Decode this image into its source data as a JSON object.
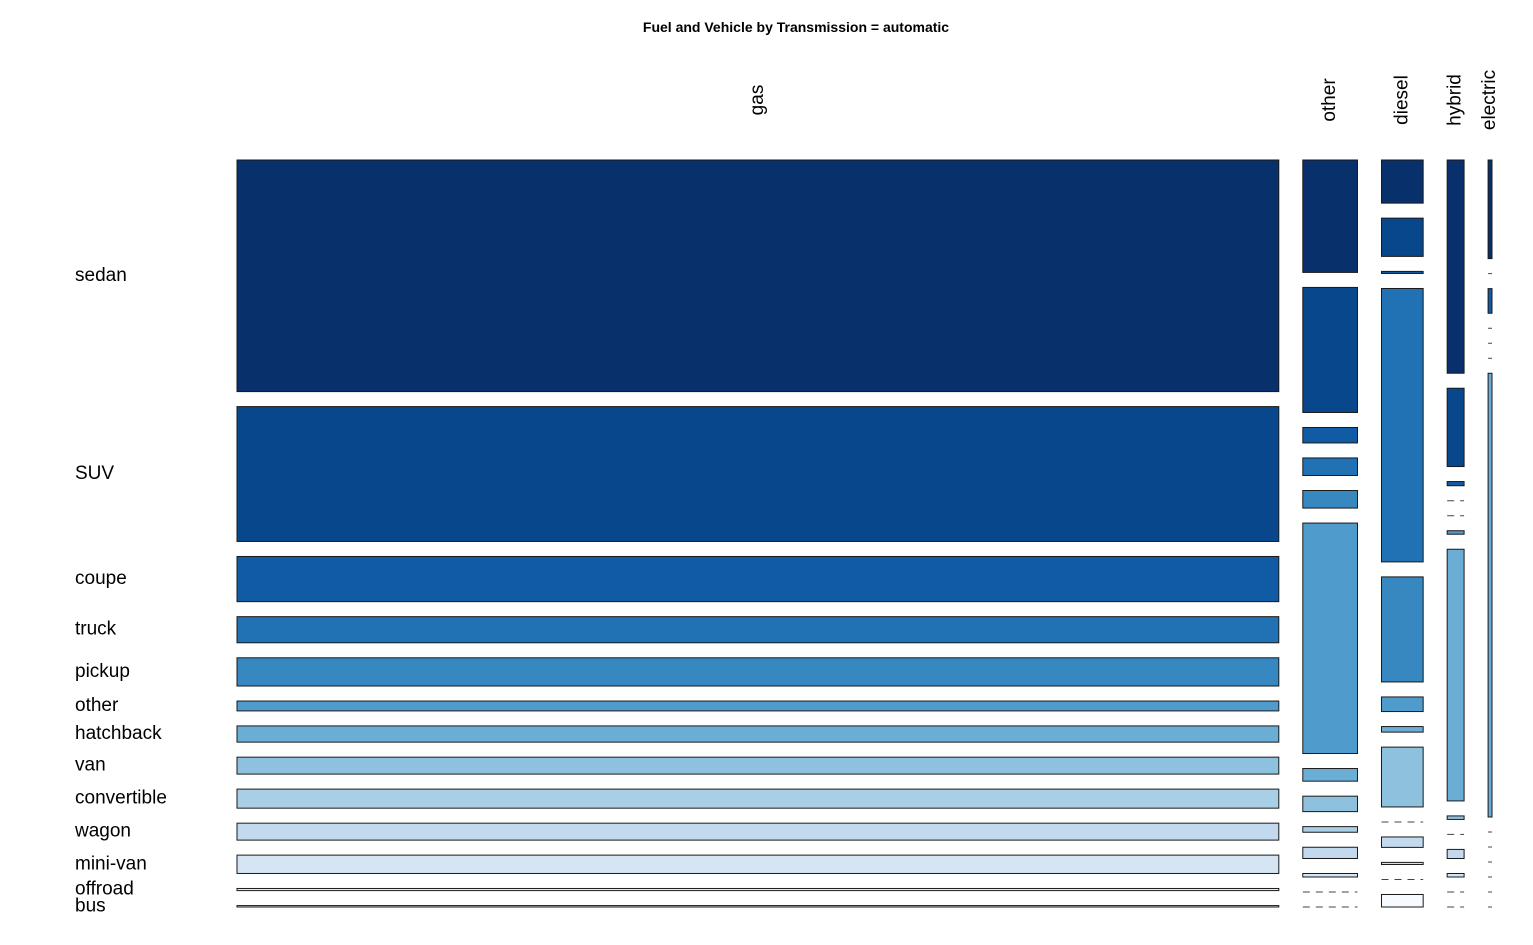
{
  "chart_data": {
    "type": "mosaic",
    "title": "Fuel and Vehicle by Transmission = automatic",
    "fuel": [
      "gas",
      "other",
      "diesel",
      "hybrid",
      "electric"
    ],
    "vehicle": [
      "sedan",
      "SUV",
      "coupe",
      "truck",
      "pickup",
      "other",
      "hatchback",
      "van",
      "convertible",
      "wagon",
      "mini-van",
      "offroad",
      "bus"
    ],
    "fuel_share": [
      0.8,
      0.042,
      0.032,
      0.013,
      0.003
    ],
    "vehicle_share_within_fuel": {
      "gas": [
        0.328,
        0.191,
        0.064,
        0.037,
        0.04,
        0.014,
        0.023,
        0.024,
        0.027,
        0.024,
        0.026,
        0.003,
        0.002
      ],
      "other": [
        0.16,
        0.178,
        0.022,
        0.025,
        0.025,
        0.328,
        0.018,
        0.022,
        0.008,
        0.016,
        0.005,
        0.0,
        0.0
      ],
      "diesel": [
        0.062,
        0.055,
        0.003,
        0.393,
        0.151,
        0.021,
        0.008,
        0.086,
        0.0,
        0.015,
        0.003,
        0.0,
        0.018
      ],
      "hybrid": [
        0.305,
        0.112,
        0.006,
        0.0,
        0.0,
        0.005,
        0.36,
        0.005,
        0.0,
        0.013,
        0.005,
        0.0,
        0.0
      ],
      "electric": [
        0.14,
        0.0,
        0.035,
        0.0,
        0.0,
        0.0,
        0.63,
        0.0,
        0.0,
        0.0,
        0.0,
        0.0,
        0.0
      ]
    },
    "colors": [
      "#08306b",
      "#08478c",
      "#105ba4",
      "#2171b5",
      "#3787c0",
      "#4f9bcb",
      "#6aaed6",
      "#8dc1dd",
      "#a8cfe5",
      "#c3daee",
      "#d5e5f4",
      "#e6eff9",
      "#f7fbff"
    ]
  }
}
